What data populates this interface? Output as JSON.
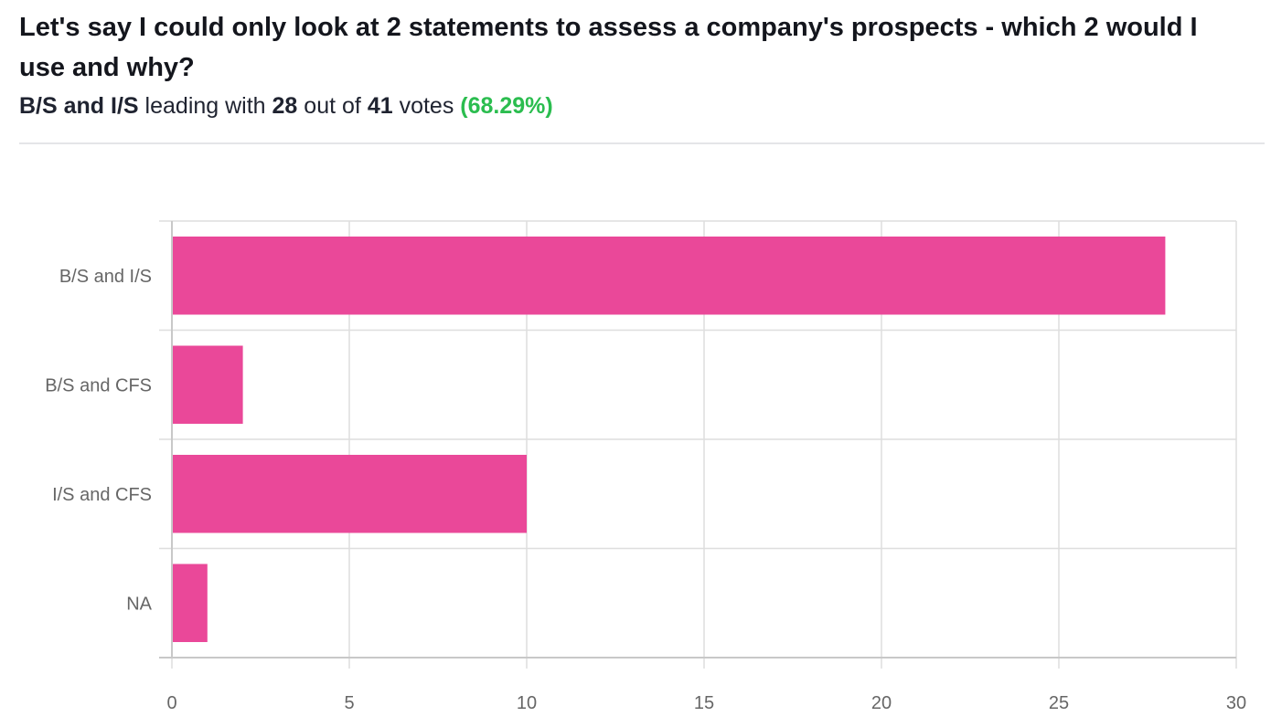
{
  "header": {
    "title": "Let's say I could only look at 2 statements to assess a company's prospects - which 2 would I use and why?",
    "leader": "B/S and I/S",
    "leading_with_text": "leading with",
    "leader_votes": "28",
    "out_of_text": "out of",
    "total_votes": "41",
    "votes_text": "votes",
    "leader_percent": "(68.29%)",
    "percent_color": "#2bbd4f"
  },
  "chart_data": {
    "type": "bar",
    "orientation": "horizontal",
    "categories": [
      "B/S and I/S",
      "B/S and CFS",
      "I/S and CFS",
      "NA"
    ],
    "values": [
      28,
      2,
      10,
      1
    ],
    "xlim": [
      0,
      30
    ],
    "xticks": [
      0,
      5,
      10,
      15,
      20,
      25,
      30
    ],
    "bar_color": "#ea4899",
    "grid": true,
    "legend": "none"
  }
}
